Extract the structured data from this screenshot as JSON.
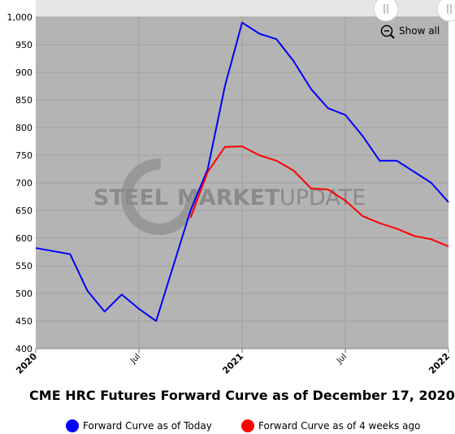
{
  "chart_data": {
    "type": "line",
    "title": "CME HRC Futures Forward Curve as of December 17, 2020",
    "xlabel": "",
    "ylabel": "",
    "ylim": [
      400,
      1000
    ],
    "y_ticks": [
      "400",
      "450",
      "500",
      "550",
      "600",
      "650",
      "700",
      "750",
      "800",
      "850",
      "900",
      "950",
      "1,000"
    ],
    "x_tick_labels": [
      {
        "label": "2020",
        "at": "2020-01",
        "bold": true
      },
      {
        "label": "Jul",
        "at": "2020-07",
        "bold": false
      },
      {
        "label": "2021",
        "at": "2021-01",
        "bold": true
      },
      {
        "label": "Jul",
        "at": "2021-07",
        "bold": false
      },
      {
        "label": "2022",
        "at": "2022-01",
        "bold": true
      }
    ],
    "grid": true,
    "legend_position": "bottom",
    "series": [
      {
        "name": "Forward Curve as of Today",
        "color": "#0000ff",
        "points": [
          [
            "2020-01",
            582
          ],
          [
            "2020-03",
            571
          ],
          [
            "2020-04",
            505
          ],
          [
            "2020-05",
            467
          ],
          [
            "2020-06",
            498
          ],
          [
            "2020-07",
            472
          ],
          [
            "2020-08",
            450
          ],
          [
            "2020-09",
            550
          ],
          [
            "2020-10",
            650
          ],
          [
            "2020-11",
            725
          ],
          [
            "2020-12",
            875
          ],
          [
            "2021-01",
            990
          ],
          [
            "2021-02",
            970
          ],
          [
            "2021-03",
            960
          ],
          [
            "2021-04",
            920
          ],
          [
            "2021-05",
            870
          ],
          [
            "2021-06",
            835
          ],
          [
            "2021-07",
            823
          ],
          [
            "2021-08",
            785
          ],
          [
            "2021-09",
            740
          ],
          [
            "2021-10",
            740
          ],
          [
            "2021-11",
            720
          ],
          [
            "2021-12",
            700
          ],
          [
            "2022-01",
            665
          ]
        ]
      },
      {
        "name": "Forward Curve as of 4 weeks ago",
        "color": "#ff0000",
        "points": [
          [
            "2020-10",
            637
          ],
          [
            "2020-11",
            720
          ],
          [
            "2020-12",
            765
          ],
          [
            "2021-01",
            766
          ],
          [
            "2021-02",
            750
          ],
          [
            "2021-03",
            740
          ],
          [
            "2021-04",
            722
          ],
          [
            "2021-05",
            690
          ],
          [
            "2021-06",
            688
          ],
          [
            "2021-07",
            668
          ],
          [
            "2021-08",
            640
          ],
          [
            "2021-09",
            627
          ],
          [
            "2021-10",
            617
          ],
          [
            "2021-11",
            604
          ],
          [
            "2021-12",
            598
          ],
          [
            "2022-01",
            585
          ]
        ]
      }
    ]
  },
  "controls": {
    "show_all_label": "Show all",
    "zoom_icon": "zoom-out-icon",
    "handle_icon": "drag-handle-icon"
  },
  "watermark": {
    "word1": "STEEL",
    "word2": "MARKET",
    "word3": "UPDATE"
  },
  "colors": {
    "plot_background": "#b4b4b4",
    "navigator_background": "#e6e6e6"
  }
}
